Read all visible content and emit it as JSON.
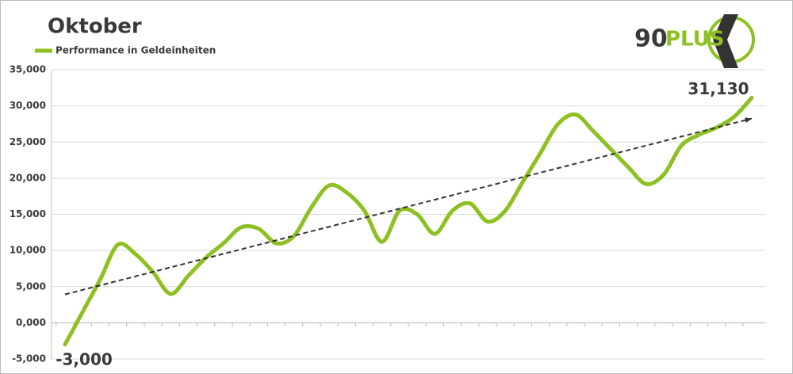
{
  "chart_data": {
    "type": "line",
    "title": "Oktober",
    "logo": {
      "number": "90",
      "word": "PLUS"
    },
    "categories": [
      null,
      null,
      null,
      null,
      null,
      null,
      null,
      null,
      null,
      null,
      null,
      null,
      null,
      null,
      null,
      null,
      null,
      null,
      null,
      null,
      null,
      null,
      null,
      null,
      null,
      null,
      null,
      null,
      null,
      null,
      null,
      null,
      null,
      null,
      null,
      null,
      null,
      null,
      null,
      null
    ],
    "series": [
      {
        "name": "Performance in Geldeinheiten",
        "color": "#8dc021",
        "values": [
          -3000,
          1500,
          6000,
          10800,
          9500,
          7000,
          4000,
          6500,
          9000,
          11000,
          13200,
          13000,
          11000,
          12000,
          16000,
          19000,
          18000,
          15500,
          11200,
          15500,
          15000,
          12300,
          15500,
          16500,
          14000,
          15500,
          19500,
          23500,
          27500,
          28800,
          26500,
          24000,
          21500,
          19200,
          20500,
          24500,
          26000,
          27000,
          28500,
          31130
        ],
        "value_labels": [
          "-3,000",
          null,
          null,
          null,
          null,
          null,
          null,
          null,
          null,
          null,
          null,
          null,
          null,
          null,
          null,
          null,
          null,
          null,
          null,
          null,
          null,
          null,
          null,
          null,
          null,
          null,
          null,
          null,
          null,
          null,
          null,
          null,
          null,
          null,
          null,
          null,
          null,
          null,
          null,
          "31,130"
        ]
      }
    ],
    "ylim": [
      -5000,
      35000
    ],
    "yticks": [
      {
        "value": -5000,
        "label": "-5,000"
      },
      {
        "value": 0,
        "label": "0,000"
      },
      {
        "value": 5000,
        "label": "5,000"
      },
      {
        "value": 10000,
        "label": "10,000"
      },
      {
        "value": 15000,
        "label": "15,000"
      },
      {
        "value": 20000,
        "label": "20,000"
      },
      {
        "value": 25000,
        "label": "25,000"
      },
      {
        "value": 30000,
        "label": "30,000"
      },
      {
        "value": 35000,
        "label": "35,000"
      }
    ],
    "grid": true,
    "trendline": true,
    "legend": "top-left"
  }
}
